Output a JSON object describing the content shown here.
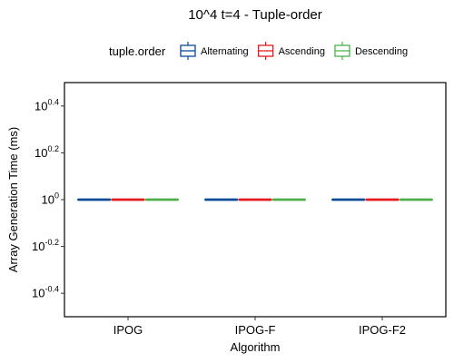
{
  "chart_data": {
    "type": "box",
    "title": "10^4 t=4 - Tuple-order",
    "xlabel": "Algorithm",
    "ylabel": "Array Generation Time (ms)",
    "yscale": "log10",
    "ylim_exponent": [
      -0.5,
      0.5
    ],
    "y_ticks": [
      {
        "base": "10",
        "exp": "-0.4",
        "value_exp": -0.4
      },
      {
        "base": "10",
        "exp": "-0.2",
        "value_exp": -0.2
      },
      {
        "base": "10",
        "exp": "0",
        "value_exp": 0
      },
      {
        "base": "10",
        "exp": "0.2",
        "value_exp": 0.2
      },
      {
        "base": "10",
        "exp": "0.4",
        "value_exp": 0.4
      }
    ],
    "categories": [
      "IPOG",
      "IPOG-F",
      "IPOG-F2"
    ],
    "legend": {
      "title": "tuple.order",
      "position": "top"
    },
    "series": [
      {
        "name": "Alternating",
        "color": "#0b4a96",
        "values": [
          1,
          1,
          1
        ]
      },
      {
        "name": "Ascending",
        "color": "#e41a1c",
        "values": [
          1,
          1,
          1
        ]
      },
      {
        "name": "Descending",
        "color": "#4daf4a",
        "values": [
          1,
          1,
          1
        ]
      }
    ],
    "grid": false
  }
}
